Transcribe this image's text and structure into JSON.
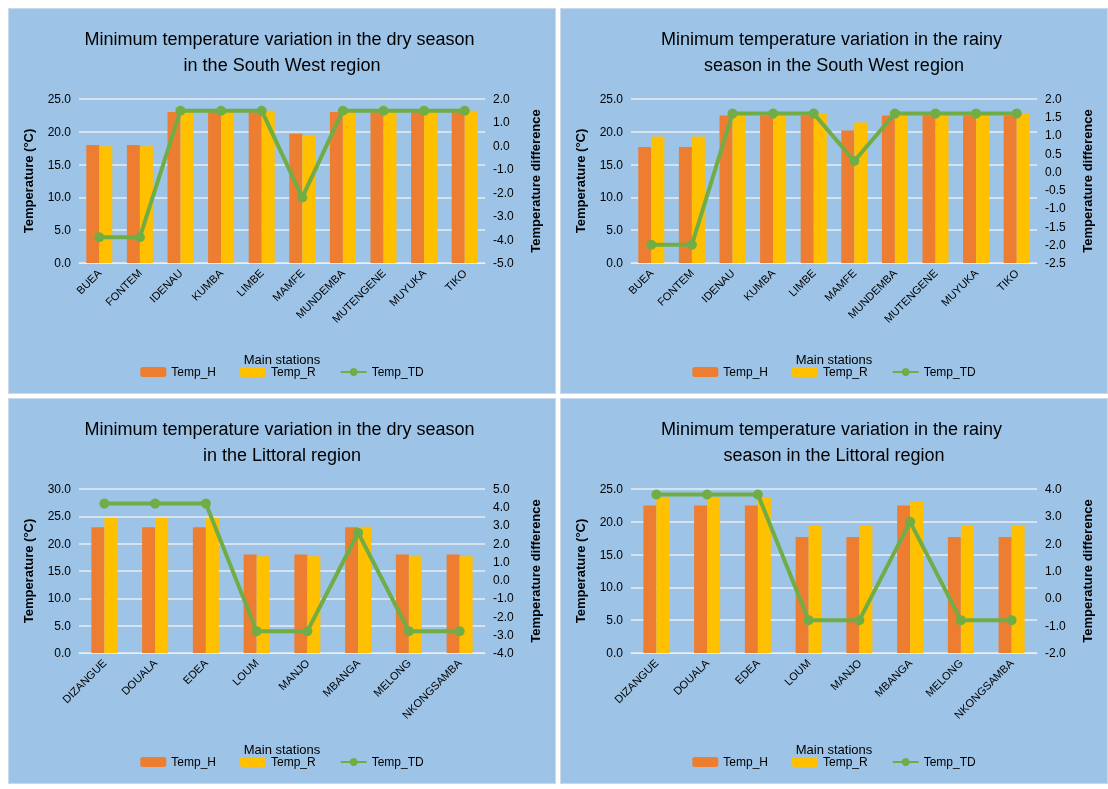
{
  "chart_data": [
    {
      "type": "bar",
      "title": "Minimum temperature variation in the dry season in the South West region",
      "xlabel": "Main stations",
      "ylabel": "Temperature (°C)",
      "y2label": "Temperature difference",
      "categories": [
        "BUEA",
        "FONTEM",
        "IDENAU",
        "KUMBA",
        "LIMBE",
        "MAMFE",
        "MUNDEMBA",
        "MUTENGENE",
        "MUYUKA",
        "TIKO"
      ],
      "series": [
        {
          "name": "Temp_H",
          "color": "#ed7d31",
          "values": [
            18.0,
            18.0,
            23.0,
            23.0,
            23.0,
            19.7,
            23.0,
            23.0,
            23.0,
            23.0
          ]
        },
        {
          "name": "Temp_R",
          "color": "#ffc000",
          "values": [
            17.8,
            17.8,
            23.2,
            23.2,
            23.2,
            19.4,
            23.2,
            23.2,
            23.2,
            23.2
          ]
        },
        {
          "name": "Temp_TD",
          "type": "line",
          "axis": "y2",
          "color": "#70ad47",
          "values": [
            -3.9,
            -3.9,
            1.5,
            1.5,
            1.5,
            -2.2,
            1.5,
            1.5,
            1.5,
            1.5
          ]
        }
      ],
      "ylim": [
        0,
        25
      ],
      "yticks": [
        {
          "value": 0,
          "label": "0.0"
        },
        {
          "value": 5,
          "label": "5.0"
        },
        {
          "value": 10,
          "label": "10.0"
        },
        {
          "value": 15,
          "label": "15.0"
        },
        {
          "value": 20,
          "label": "20.0"
        },
        {
          "value": 25,
          "label": "25.0"
        }
      ],
      "y2lim": [
        -5,
        2
      ],
      "y2ticks": [
        {
          "value": -5,
          "label": "-5.0"
        },
        {
          "value": -4,
          "label": "-4.0"
        },
        {
          "value": -3,
          "label": "-3.0"
        },
        {
          "value": -2,
          "label": "-2.0"
        },
        {
          "value": -1,
          "label": "-1.0"
        },
        {
          "value": 0,
          "label": "0.0"
        },
        {
          "value": 1,
          "label": "1.0"
        },
        {
          "value": 2,
          "label": "2.0"
        }
      ],
      "grid": "y",
      "legend": "bottom",
      "marker": "circle"
    },
    {
      "type": "bar",
      "title": "Minimum temperature variation in the rainy season in the South West region",
      "xlabel": "Main stations",
      "ylabel": "Temperature (°C)",
      "y2label": "Temperature difference",
      "categories": [
        "BUEA",
        "FONTEM",
        "IDENAU",
        "KUMBA",
        "LIMBE",
        "MAMFE",
        "MUNDEMBA",
        "MUTENGENE",
        "MUYUKA",
        "TIKO"
      ],
      "series": [
        {
          "name": "Temp_H",
          "color": "#ed7d31",
          "values": [
            17.7,
            17.7,
            22.5,
            22.5,
            22.5,
            20.2,
            22.5,
            22.5,
            22.5,
            22.5
          ]
        },
        {
          "name": "Temp_R",
          "color": "#ffc000",
          "values": [
            19.3,
            19.3,
            22.7,
            22.7,
            22.8,
            21.4,
            22.7,
            22.7,
            22.7,
            22.8
          ]
        },
        {
          "name": "Temp_TD",
          "type": "line",
          "axis": "y2",
          "color": "#70ad47",
          "values": [
            -2.0,
            -2.0,
            1.6,
            1.6,
            1.6,
            0.3,
            1.6,
            1.6,
            1.6,
            1.6
          ]
        }
      ],
      "ylim": [
        0,
        25
      ],
      "yticks": [
        {
          "value": 0,
          "label": "0.0"
        },
        {
          "value": 5,
          "label": "5.0"
        },
        {
          "value": 10,
          "label": "10.0"
        },
        {
          "value": 15,
          "label": "15.0"
        },
        {
          "value": 20,
          "label": "20.0"
        },
        {
          "value": 25,
          "label": "25.0"
        }
      ],
      "y2lim": [
        -2.5,
        2
      ],
      "y2ticks": [
        -2.5,
        {
          "value": -2,
          "label": "-2.0"
        },
        -1.5,
        {
          "value": -1,
          "label": "-1.0"
        },
        -0.5,
        {
          "value": 0,
          "label": "0.0"
        },
        0.5,
        {
          "value": 1,
          "label": "1.0"
        },
        1.5,
        {
          "value": 2,
          "label": "2.0"
        }
      ],
      "grid": "y",
      "legend": "bottom",
      "marker": "circle"
    },
    {
      "type": "bar",
      "title": "Minimum temperature variation in the dry season in the Littoral region",
      "xlabel": "Main stations",
      "ylabel": "Temperature (°C)",
      "y2label": "Temperature difference",
      "categories": [
        "DIZANGUE",
        "DOUALA",
        "EDEA",
        "LOUM",
        "MANJO",
        "MBANGA",
        "MELONG",
        "NKONGSAMBA"
      ],
      "series": [
        {
          "name": "Temp_H",
          "color": "#ed7d31",
          "values": [
            23.0,
            23.0,
            23.0,
            18.0,
            18.0,
            23.0,
            18.0,
            18.0
          ]
        },
        {
          "name": "Temp_R",
          "color": "#ffc000",
          "values": [
            24.7,
            24.7,
            24.7,
            17.7,
            17.7,
            23.1,
            17.7,
            17.7
          ]
        },
        {
          "name": "Temp_TD",
          "type": "line",
          "axis": "y2",
          "color": "#70ad47",
          "values": [
            4.2,
            4.2,
            4.2,
            -2.8,
            -2.8,
            2.6,
            -2.8,
            -2.8
          ]
        }
      ],
      "ylim": [
        0,
        30
      ],
      "yticks": [
        {
          "value": 0,
          "label": "0.0"
        },
        {
          "value": 5,
          "label": "5.0"
        },
        {
          "value": 10,
          "label": "10.0"
        },
        {
          "value": 15,
          "label": "15.0"
        },
        {
          "value": 20,
          "label": "20.0"
        },
        {
          "value": 25,
          "label": "25.0"
        },
        {
          "value": 30,
          "label": "30.0"
        }
      ],
      "y2lim": [
        -4,
        5
      ],
      "y2ticks": [
        {
          "value": -4,
          "label": "-4.0"
        },
        {
          "value": -3,
          "label": "-3.0"
        },
        {
          "value": -2,
          "label": "-2.0"
        },
        {
          "value": -1,
          "label": "-1.0"
        },
        {
          "value": 0,
          "label": "0.0"
        },
        {
          "value": 1,
          "label": "1.0"
        },
        {
          "value": 2,
          "label": "2.0"
        },
        {
          "value": 3,
          "label": "3.0"
        },
        {
          "value": 4,
          "label": "4.0"
        },
        {
          "value": 5,
          "label": "5.0"
        }
      ],
      "grid": "y",
      "legend": "bottom",
      "marker": "circle"
    },
    {
      "type": "bar",
      "title": "Minimum temperature variation in the rainy season in the Littoral region",
      "xlabel": "Main stations",
      "ylabel": "Temperature (°C)",
      "y2label": "Temperature difference",
      "categories": [
        "DIZANGUE",
        "DOUALA",
        "EDEA",
        "LOUM",
        "MANJO",
        "MBANGA",
        "MELONG",
        "NKONGSAMBA"
      ],
      "series": [
        {
          "name": "Temp_H",
          "color": "#ed7d31",
          "values": [
            22.5,
            22.5,
            22.5,
            17.7,
            17.7,
            22.5,
            17.7,
            17.7
          ]
        },
        {
          "name": "Temp_R",
          "color": "#ffc000",
          "values": [
            23.7,
            23.7,
            23.7,
            19.4,
            19.4,
            23.0,
            19.4,
            19.4
          ]
        },
        {
          "name": "Temp_TD",
          "type": "line",
          "axis": "y2",
          "color": "#70ad47",
          "values": [
            3.8,
            3.8,
            3.8,
            -0.8,
            -0.8,
            2.8,
            -0.8,
            -0.8
          ]
        }
      ],
      "ylim": [
        0,
        25
      ],
      "yticks": [
        {
          "value": 0,
          "label": "0.0"
        },
        {
          "value": 5,
          "label": "5.0"
        },
        {
          "value": 10,
          "label": "10.0"
        },
        {
          "value": 15,
          "label": "15.0"
        },
        {
          "value": 20,
          "label": "20.0"
        },
        {
          "value": 25,
          "label": "25.0"
        }
      ],
      "y2lim": [
        -2,
        4
      ],
      "y2ticks": [
        {
          "value": -2,
          "label": "-2.0"
        },
        {
          "value": -1,
          "label": "-1.0"
        },
        {
          "value": 0,
          "label": "0.0"
        },
        {
          "value": 1,
          "label": "1.0"
        },
        {
          "value": 2,
          "label": "2.0"
        },
        {
          "value": 3,
          "label": "3.0"
        },
        {
          "value": 4,
          "label": "4.0"
        }
      ],
      "grid": "y",
      "legend": "bottom",
      "marker": "circle"
    }
  ]
}
